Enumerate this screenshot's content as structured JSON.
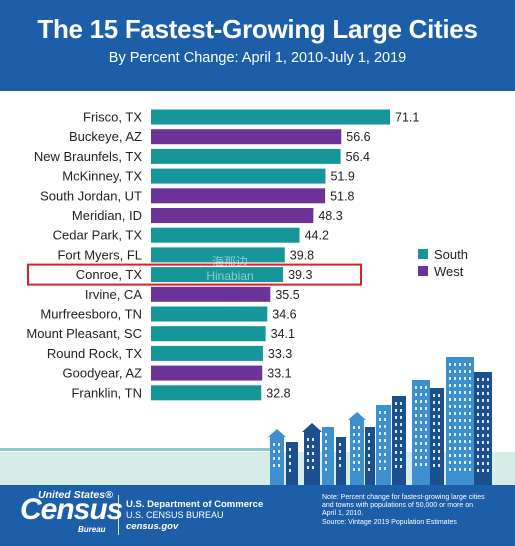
{
  "header": {
    "title": "The 15 Fastest-Growing Large Cities",
    "subtitle": "By Percent Change: April 1, 2010-July 1, 2019"
  },
  "colors": {
    "header_bg": "#1d5ea9",
    "south": "#17969a",
    "west": "#6e3396",
    "highlight_box": "#e02020",
    "skyline_light": "#3e8fd0",
    "skyline_dark": "#1b4f8e",
    "ground": "#d6ece6"
  },
  "legend": {
    "south": "South",
    "west": "West"
  },
  "chart_data": {
    "type": "bar",
    "orientation": "horizontal",
    "categories": [
      "Frisco, TX",
      "Buckeye, AZ",
      "New Braunfels, TX",
      "McKinney, TX",
      "South Jordan, UT",
      "Meridian, ID",
      "Cedar Park, TX",
      "Fort Myers, FL",
      "Conroe, TX",
      "Irvine, CA",
      "Murfreesboro, TN",
      "Mount Pleasant, SC",
      "Round Rock, TX",
      "Goodyear, AZ",
      "Franklin, TN"
    ],
    "values": [
      71.1,
      56.6,
      56.4,
      51.9,
      51.8,
      48.3,
      44.2,
      39.8,
      39.3,
      35.5,
      34.6,
      34.1,
      33.3,
      33.1,
      32.8
    ],
    "value_labels": [
      "71.1",
      "56.6",
      "56.4",
      "51.9",
      "51.8",
      "48.3",
      "44.2",
      "39.8",
      "39.3",
      "35.5",
      "34.6",
      "34.1",
      "33.3",
      "33.1",
      "32.8"
    ],
    "regions": [
      "South",
      "West",
      "South",
      "South",
      "West",
      "West",
      "South",
      "South",
      "South",
      "West",
      "South",
      "South",
      "South",
      "West",
      "South"
    ],
    "series": [
      {
        "name": "South"
      },
      {
        "name": "West"
      }
    ],
    "highlighted_category": "Conroe, TX",
    "legend_position": "right",
    "grid": false,
    "xlim": [
      0,
      71.1
    ]
  },
  "watermark": {
    "line1": "海那边",
    "line2": "Hinabian"
  },
  "footer": {
    "logo_top": "United States®",
    "logo_main": "Census",
    "logo_bureau": "Bureau",
    "dept_line1": "U.S. Department of Commerce",
    "dept_line2": "U.S. CENSUS BUREAU",
    "dept_line3": "census.gov",
    "note_line1": "Note: Percent change for fastest-growing large cities",
    "note_line2": "and towns with populations of 50,000 or more on",
    "note_line3": "April 1, 2010.",
    "note_line4": "Source: Vintage 2019 Population Estimates"
  }
}
